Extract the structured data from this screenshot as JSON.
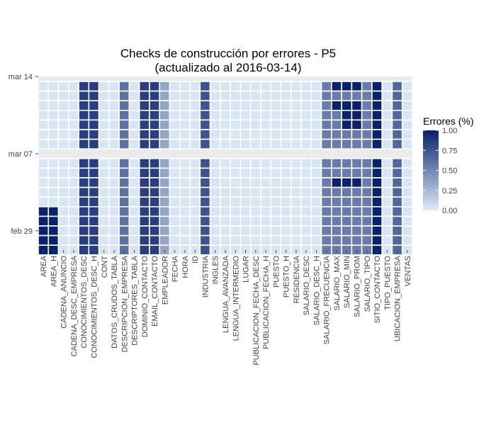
{
  "chart_data": {
    "type": "heatmap",
    "title": "Checks de construcción por errores - P5",
    "subtitle": "(actualizado al 2016-03-14)",
    "x_categories": [
      "AREA",
      "AREA_H",
      "CADENA_ANUNCIO",
      "CADENA_DESC_EMPRESA",
      "CONOCIMIENTOS_DESC",
      "CONOCIMIENTOS_DESC_H",
      "CONT",
      "DATOS_CRUDOS_TABLA",
      "DESCRIPCION_EMPRESA",
      "DESCRIPTORES_TABLA",
      "DOMINIO_CONTACTO",
      "EMAIL_CONTACTO",
      "EMPLEADOR",
      "FECHA",
      "HORA",
      "ID",
      "INDUSTRIA",
      "INGLES",
      "LENGUA_AVANZADA",
      "LENGUA_INTERMEDIO",
      "LUGAR",
      "PUBLICACION_FECHA_DESC",
      "PUBLICACION_FECHA_H",
      "PUESTO",
      "PUESTO_H",
      "RESIDENCIA",
      "SALARIO_DESC",
      "SALARIO_DESC_H",
      "SALARIO_FRECUENCIA",
      "SALARIO_MAX",
      "SALARIO_MIN",
      "SALARIO_PROM",
      "SALARIO_TIPO",
      "SITIO_CONTACTO",
      "TIPO_PUESTO",
      "UBICACION_EMPRESA",
      "VENTAS"
    ],
    "y_tick_labels": [
      {
        "label": "mar 14",
        "date": "2016-03-14"
      },
      {
        "label": "mar 07",
        "date": "2016-03-07"
      },
      {
        "label": "feb 29",
        "date": "2016-02-29"
      }
    ],
    "dates": [
      "2016-03-14",
      "2016-03-13",
      "2016-03-12",
      "2016-03-11",
      "2016-03-10",
      "2016-03-09",
      "2016-03-08",
      "2016-03-07",
      "2016-03-06",
      "2016-03-05",
      "2016-03-04",
      "2016-03-03",
      "2016-03-02",
      "2016-03-01",
      "2016-02-29",
      "2016-02-28",
      "2016-02-27"
    ],
    "gap_dates": [
      "2016-03-14",
      "2016-03-07"
    ],
    "values": [
      [
        0.03,
        0.03,
        0.03,
        0.03,
        0.85,
        0.85,
        0.03,
        0.03,
        0.6,
        0.03,
        0.85,
        0.85,
        0.35,
        0.03,
        0.03,
        0.03,
        0.75,
        0.03,
        0.03,
        0.03,
        0.03,
        0.03,
        0.03,
        0.03,
        0.03,
        0.03,
        0.03,
        0.03,
        0.55,
        0.99,
        0.99,
        0.99,
        0.55,
        0.99,
        0.03,
        0.65,
        0.03
      ],
      [
        0.03,
        0.03,
        0.03,
        0.03,
        0.85,
        0.85,
        0.03,
        0.03,
        0.6,
        0.03,
        0.85,
        0.85,
        0.35,
        0.03,
        0.03,
        0.03,
        0.75,
        0.03,
        0.03,
        0.03,
        0.03,
        0.03,
        0.03,
        0.03,
        0.03,
        0.03,
        0.03,
        0.03,
        0.55,
        0.55,
        0.55,
        0.55,
        0.55,
        0.99,
        0.03,
        0.65,
        0.03
      ],
      [
        0.03,
        0.03,
        0.03,
        0.03,
        0.85,
        0.85,
        0.03,
        0.03,
        0.6,
        0.03,
        0.85,
        0.85,
        0.35,
        0.03,
        0.03,
        0.03,
        0.75,
        0.03,
        0.03,
        0.03,
        0.03,
        0.03,
        0.03,
        0.03,
        0.03,
        0.03,
        0.03,
        0.03,
        0.55,
        0.99,
        0.99,
        0.99,
        0.55,
        0.99,
        0.03,
        0.65,
        0.03
      ],
      [
        0.03,
        0.03,
        0.03,
        0.03,
        0.85,
        0.85,
        0.03,
        0.03,
        0.6,
        0.03,
        0.85,
        0.85,
        0.35,
        0.03,
        0.03,
        0.03,
        0.75,
        0.03,
        0.03,
        0.03,
        0.03,
        0.03,
        0.03,
        0.03,
        0.03,
        0.03,
        0.03,
        0.03,
        0.55,
        0.55,
        0.99,
        0.99,
        0.55,
        0.99,
        0.03,
        0.65,
        0.03
      ],
      [
        0.03,
        0.03,
        0.03,
        0.03,
        0.85,
        0.85,
        0.03,
        0.03,
        0.6,
        0.03,
        0.85,
        0.85,
        0.35,
        0.03,
        0.03,
        0.03,
        0.75,
        0.03,
        0.03,
        0.03,
        0.03,
        0.03,
        0.03,
        0.03,
        0.03,
        0.03,
        0.03,
        0.03,
        0.55,
        0.55,
        0.99,
        0.99,
        0.55,
        0.99,
        0.03,
        0.65,
        0.03
      ],
      [
        0.03,
        0.03,
        0.03,
        0.03,
        0.85,
        0.85,
        0.03,
        0.03,
        0.6,
        0.03,
        0.85,
        0.85,
        0.35,
        0.03,
        0.03,
        0.03,
        0.75,
        0.03,
        0.03,
        0.03,
        0.03,
        0.03,
        0.03,
        0.03,
        0.03,
        0.03,
        0.03,
        0.03,
        0.55,
        0.55,
        0.55,
        0.55,
        0.55,
        0.99,
        0.03,
        0.65,
        0.03
      ],
      [
        0.03,
        0.03,
        0.03,
        0.03,
        0.85,
        0.85,
        0.03,
        0.03,
        0.6,
        0.03,
        0.85,
        0.85,
        0.35,
        0.03,
        0.03,
        0.03,
        0.75,
        0.03,
        0.03,
        0.03,
        0.03,
        0.03,
        0.03,
        0.03,
        0.03,
        0.03,
        0.03,
        0.03,
        0.55,
        0.55,
        0.55,
        0.55,
        0.55,
        0.99,
        0.03,
        0.65,
        0.03
      ],
      [
        0.03,
        0.03,
        0.03,
        0.03,
        0.85,
        0.85,
        0.03,
        0.03,
        0.6,
        0.03,
        0.85,
        0.85,
        0.35,
        0.03,
        0.03,
        0.03,
        0.75,
        0.03,
        0.03,
        0.03,
        0.03,
        0.03,
        0.03,
        0.03,
        0.03,
        0.03,
        0.03,
        0.03,
        0.55,
        0.55,
        0.55,
        0.55,
        0.55,
        0.99,
        0.03,
        0.65,
        0.03
      ],
      [
        0.03,
        0.03,
        0.03,
        0.03,
        0.85,
        0.85,
        0.03,
        0.03,
        0.6,
        0.03,
        0.85,
        0.85,
        0.35,
        0.03,
        0.03,
        0.03,
        0.75,
        0.03,
        0.03,
        0.03,
        0.03,
        0.03,
        0.03,
        0.03,
        0.03,
        0.03,
        0.03,
        0.03,
        0.55,
        0.55,
        0.55,
        0.55,
        0.55,
        0.99,
        0.03,
        0.65,
        0.03
      ],
      [
        0.03,
        0.03,
        0.03,
        0.03,
        0.85,
        0.85,
        0.03,
        0.03,
        0.6,
        0.03,
        0.85,
        0.85,
        0.35,
        0.03,
        0.03,
        0.03,
        0.75,
        0.03,
        0.03,
        0.03,
        0.03,
        0.03,
        0.03,
        0.03,
        0.03,
        0.03,
        0.03,
        0.03,
        0.55,
        0.99,
        0.99,
        0.99,
        0.55,
        0.99,
        0.03,
        0.65,
        0.03
      ],
      [
        0.03,
        0.03,
        0.03,
        0.03,
        0.85,
        0.85,
        0.03,
        0.03,
        0.6,
        0.03,
        0.85,
        0.85,
        0.35,
        0.03,
        0.03,
        0.03,
        0.75,
        0.03,
        0.03,
        0.03,
        0.03,
        0.03,
        0.03,
        0.03,
        0.03,
        0.03,
        0.03,
        0.03,
        0.55,
        0.55,
        0.55,
        0.55,
        0.55,
        0.99,
        0.03,
        0.65,
        0.03
      ],
      [
        0.03,
        0.03,
        0.03,
        0.03,
        0.85,
        0.85,
        0.03,
        0.03,
        0.6,
        0.03,
        0.85,
        0.85,
        0.35,
        0.03,
        0.03,
        0.03,
        0.75,
        0.03,
        0.03,
        0.03,
        0.03,
        0.03,
        0.03,
        0.03,
        0.03,
        0.03,
        0.03,
        0.03,
        0.55,
        0.55,
        0.55,
        0.55,
        0.55,
        0.99,
        0.03,
        0.65,
        0.03
      ],
      [
        0.99,
        0.99,
        0.03,
        0.03,
        0.85,
        0.85,
        0.03,
        0.03,
        0.6,
        0.03,
        0.85,
        0.85,
        0.35,
        0.03,
        0.03,
        0.03,
        0.75,
        0.03,
        0.03,
        0.03,
        0.03,
        0.03,
        0.03,
        0.03,
        0.03,
        0.03,
        0.03,
        0.03,
        0.55,
        0.55,
        0.55,
        0.55,
        0.55,
        0.99,
        0.03,
        0.65,
        0.03
      ],
      [
        0.99,
        0.99,
        0.03,
        0.03,
        0.85,
        0.85,
        0.03,
        0.03,
        0.6,
        0.03,
        0.85,
        0.85,
        0.35,
        0.03,
        0.03,
        0.03,
        0.75,
        0.03,
        0.03,
        0.03,
        0.03,
        0.03,
        0.03,
        0.03,
        0.03,
        0.03,
        0.03,
        0.03,
        0.55,
        0.55,
        0.55,
        0.55,
        0.55,
        0.99,
        0.03,
        0.65,
        0.03
      ],
      [
        0.99,
        0.99,
        0.03,
        0.03,
        0.85,
        0.85,
        0.03,
        0.03,
        0.6,
        0.03,
        0.85,
        0.85,
        0.35,
        0.03,
        0.03,
        0.03,
        0.75,
        0.03,
        0.03,
        0.03,
        0.03,
        0.03,
        0.03,
        0.03,
        0.03,
        0.03,
        0.03,
        0.03,
        0.55,
        0.55,
        0.55,
        0.55,
        0.55,
        0.99,
        0.03,
        0.65,
        0.03
      ],
      [
        0.99,
        0.99,
        0.03,
        0.03,
        0.85,
        0.85,
        0.03,
        0.03,
        0.6,
        0.03,
        0.85,
        0.85,
        0.35,
        0.03,
        0.03,
        0.03,
        0.75,
        0.03,
        0.03,
        0.03,
        0.03,
        0.03,
        0.03,
        0.03,
        0.03,
        0.03,
        0.03,
        0.03,
        0.55,
        0.55,
        0.55,
        0.55,
        0.55,
        0.99,
        0.03,
        0.65,
        0.03
      ],
      [
        0.99,
        0.99,
        0.03,
        0.03,
        0.85,
        0.85,
        0.03,
        0.03,
        0.6,
        0.03,
        0.85,
        0.85,
        0.35,
        0.03,
        0.03,
        0.03,
        0.75,
        0.03,
        0.03,
        0.03,
        0.03,
        0.03,
        0.03,
        0.03,
        0.03,
        0.03,
        0.03,
        0.03,
        0.55,
        0.55,
        0.55,
        0.55,
        0.55,
        0.99,
        0.03,
        0.65,
        0.03
      ]
    ],
    "legend": {
      "title": "Errores (%)",
      "ticks": [
        {
          "value": 1.0,
          "label": "1.00"
        },
        {
          "value": 0.75,
          "label": "0.75"
        },
        {
          "value": 0.5,
          "label": "0.50"
        },
        {
          "value": 0.25,
          "label": "0.25"
        },
        {
          "value": 0.0,
          "label": "0.00"
        }
      ],
      "position": "right"
    },
    "color_low": "#deebf7",
    "color_high": "#08206b",
    "panel_background": "#ebebeb",
    "grid": false
  }
}
